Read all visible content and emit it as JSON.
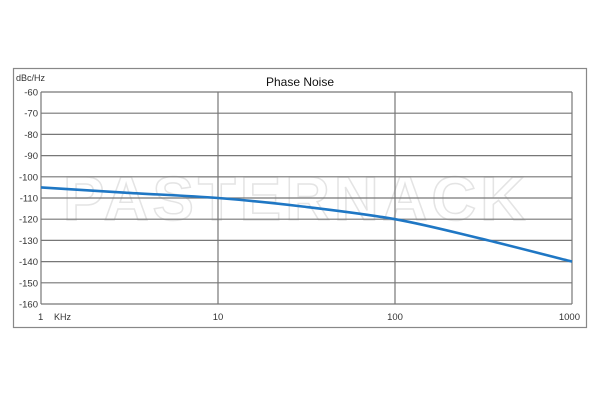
{
  "watermark": "PASTERNACK",
  "chart_data": {
    "type": "line",
    "title": "Phase Noise",
    "ylabel": "dBc/Hz",
    "xunit": "KHz",
    "xscale": "log",
    "xlim": [
      1,
      1000
    ],
    "ylim": [
      -160,
      -60
    ],
    "grid": true,
    "xticks": [
      1,
      10,
      100,
      1000
    ],
    "xtick_labels": [
      "1",
      "10",
      "100",
      "1000"
    ],
    "yticks": [
      -60,
      -70,
      -80,
      -90,
      -100,
      -110,
      -120,
      -130,
      -140,
      -150,
      -160
    ],
    "series": [
      {
        "color": "#1f77c4",
        "x": [
          1,
          3,
          10,
          30,
          100,
          300,
          1000
        ],
        "y": [
          -105,
          -107.5,
          -110,
          -114,
          -120,
          -129,
          -140
        ]
      }
    ]
  }
}
